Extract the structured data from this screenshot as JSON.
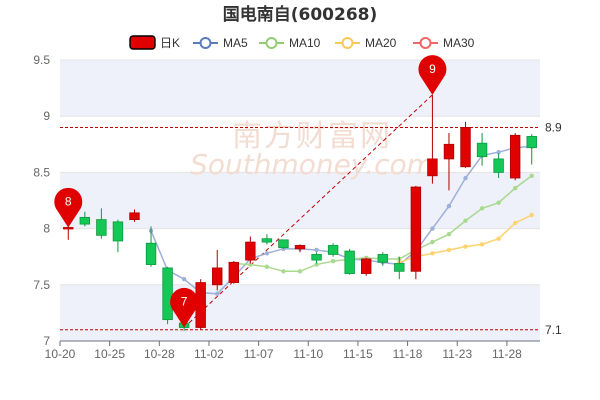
{
  "chart_data": {
    "type": "candlestick",
    "title": "国电南自(600268)",
    "legend": [
      {
        "name": "日K",
        "color": "#e00000",
        "style": "box"
      },
      {
        "name": "MA5",
        "color": "#5b7bbf",
        "style": "line-circle"
      },
      {
        "name": "MA10",
        "color": "#91cc75",
        "style": "line-circle"
      },
      {
        "name": "MA20",
        "color": "#fac858",
        "style": "line-circle"
      },
      {
        "name": "MA30",
        "color": "#ee6666",
        "style": "line-circle"
      }
    ],
    "legend_position": "top-center",
    "colors": {
      "up": "#e00000",
      "down": "#14c756",
      "ma5": "#9eafd8",
      "ma10": "#a9d98f",
      "ma20": "#fcd36f",
      "mark_line": "#c00000",
      "grid": "#e4e4e4",
      "band": "#eef0fa"
    },
    "ylim": [
      7,
      9.5
    ],
    "y_ticks": [
      "7",
      "7.5",
      "8",
      "8.5",
      "9",
      "9.5"
    ],
    "x_tick_labels": [
      "10-20",
      "10-25",
      "10-28",
      "11-02",
      "11-07",
      "11-10",
      "11-15",
      "11-18",
      "11-23",
      "11-28"
    ],
    "x_tick_index": [
      0,
      3,
      6,
      9,
      12,
      15,
      18,
      21,
      24,
      27
    ],
    "dates": [
      "10-20",
      "10-21",
      "10-24",
      "10-25",
      "10-26",
      "10-27",
      "10-28",
      "10-31",
      "11-01",
      "11-02",
      "11-03",
      "11-04",
      "11-07",
      "11-08",
      "11-09",
      "11-10",
      "11-11",
      "11-14",
      "11-15",
      "11-16",
      "11-17",
      "11-18",
      "11-21",
      "11-22",
      "11-23",
      "11-24",
      "11-25",
      "11-28",
      "11-29"
    ],
    "ohlc": [
      [
        8.0,
        8.01,
        7.9,
        8.03
      ],
      [
        8.1,
        8.04,
        8.02,
        8.15
      ],
      [
        8.08,
        7.94,
        7.91,
        8.18
      ],
      [
        8.06,
        7.89,
        7.79,
        8.08
      ],
      [
        8.08,
        8.14,
        8.06,
        8.17
      ],
      [
        7.87,
        7.68,
        7.66,
        8.02
      ],
      [
        7.65,
        7.19,
        7.15,
        7.66
      ],
      [
        7.16,
        7.12,
        7.09,
        7.31
      ],
      [
        7.12,
        7.52,
        7.1,
        7.55
      ],
      [
        7.5,
        7.65,
        7.45,
        7.81
      ],
      [
        7.52,
        7.7,
        7.51,
        7.71
      ],
      [
        7.72,
        7.88,
        7.69,
        7.93
      ],
      [
        7.91,
        7.88,
        7.86,
        7.95
      ],
      [
        7.9,
        7.83,
        7.82,
        7.9
      ],
      [
        7.82,
        7.85,
        7.79,
        7.86
      ],
      [
        7.77,
        7.72,
        7.69,
        7.79
      ],
      [
        7.85,
        7.77,
        7.75,
        7.87
      ],
      [
        7.8,
        7.6,
        7.59,
        7.82
      ],
      [
        7.6,
        7.73,
        7.58,
        7.74
      ],
      [
        7.77,
        7.7,
        7.67,
        7.79
      ],
      [
        7.69,
        7.62,
        7.55,
        7.75
      ],
      [
        7.62,
        8.37,
        7.55,
        8.38
      ],
      [
        8.47,
        8.62,
        8.4,
        9.19
      ],
      [
        8.62,
        8.75,
        8.34,
        8.85
      ],
      [
        8.55,
        8.9,
        8.54,
        8.95
      ],
      [
        8.76,
        8.64,
        8.56,
        8.85
      ],
      [
        8.62,
        8.5,
        8.45,
        8.67
      ],
      [
        8.45,
        8.83,
        8.43,
        8.85
      ],
      [
        8.82,
        8.72,
        8.57,
        8.84
      ]
    ],
    "ma5": [
      null,
      null,
      null,
      null,
      null,
      7.98,
      7.63,
      7.55,
      7.43,
      7.42,
      7.57,
      7.73,
      7.78,
      7.82,
      7.82,
      7.81,
      7.79,
      7.73,
      7.72,
      7.7,
      7.68,
      7.8,
      8.0,
      8.2,
      8.45,
      8.65,
      8.68,
      8.72,
      8.73
    ],
    "ma10": [
      null,
      null,
      null,
      null,
      null,
      null,
      null,
      null,
      null,
      null,
      7.69,
      7.68,
      7.66,
      7.62,
      7.62,
      7.68,
      7.71,
      7.73,
      7.74,
      7.73,
      7.73,
      7.81,
      7.88,
      7.95,
      8.07,
      8.18,
      8.23,
      8.36,
      8.47
    ],
    "ma20": [
      null,
      null,
      null,
      null,
      null,
      null,
      null,
      null,
      null,
      null,
      null,
      null,
      null,
      null,
      null,
      null,
      null,
      null,
      null,
      null,
      7.7,
      7.75,
      7.78,
      7.81,
      7.84,
      7.86,
      7.91,
      8.05,
      8.12
    ],
    "mark_lines": [
      {
        "value": 8.9,
        "label": "8.9"
      },
      {
        "value": 7.1,
        "label": "7.1"
      }
    ],
    "mark_points": [
      {
        "label": "8",
        "index": 0,
        "value": 8.01
      },
      {
        "label": "7",
        "index": 7,
        "value": 7.12
      },
      {
        "label": "9",
        "index": 22,
        "value": 9.19
      }
    ],
    "trend_line": {
      "from_index": 7,
      "from_value": 7.12,
      "to_index": 22,
      "to_value": 9.19
    }
  },
  "watermark": {
    "cn": "南方财富网",
    "en": "Southmoney.com"
  }
}
